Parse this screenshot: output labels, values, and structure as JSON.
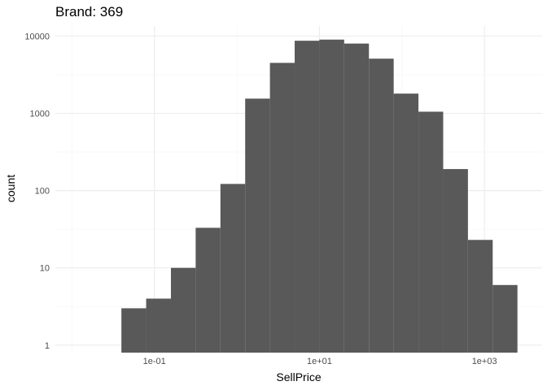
{
  "chart_data": {
    "type": "bar",
    "title": "Brand: 369",
    "xlabel": "SellPrice",
    "ylabel": "count",
    "x_scale": "log10",
    "y_scale": "log10",
    "xlim": [
      0.0063,
      5000
    ],
    "ylim": [
      0.8,
      13500
    ],
    "x_ticks": [
      0.1,
      10,
      1000
    ],
    "x_tick_labels": [
      "1e-01",
      "1e+01",
      "1e+03"
    ],
    "y_ticks": [
      1,
      10,
      100,
      1000,
      10000
    ],
    "y_tick_labels": [
      "1",
      "10",
      "100",
      "1000",
      "10000"
    ],
    "grid": true,
    "bar_color": "#595959",
    "bins": [
      {
        "x_start": 0.0398,
        "x_end": 0.0794,
        "count": 3
      },
      {
        "x_start": 0.0794,
        "x_end": 0.1585,
        "count": 4
      },
      {
        "x_start": 0.1585,
        "x_end": 0.3162,
        "count": 10
      },
      {
        "x_start": 0.3162,
        "x_end": 0.631,
        "count": 33
      },
      {
        "x_start": 0.631,
        "x_end": 1.259,
        "count": 122
      },
      {
        "x_start": 1.259,
        "x_end": 2.512,
        "count": 1550
      },
      {
        "x_start": 2.512,
        "x_end": 5.012,
        "count": 4500
      },
      {
        "x_start": 5.012,
        "x_end": 10.0,
        "count": 8700
      },
      {
        "x_start": 10.0,
        "x_end": 19.95,
        "count": 9000
      },
      {
        "x_start": 19.95,
        "x_end": 39.81,
        "count": 8000
      },
      {
        "x_start": 39.81,
        "x_end": 79.43,
        "count": 5100
      },
      {
        "x_start": 79.43,
        "x_end": 158.5,
        "count": 1800
      },
      {
        "x_start": 158.5,
        "x_end": 316.2,
        "count": 1050
      },
      {
        "x_start": 316.2,
        "x_end": 631.0,
        "count": 190
      },
      {
        "x_start": 631.0,
        "x_end": 1259,
        "count": 23
      },
      {
        "x_start": 1259,
        "x_end": 2512,
        "count": 6
      }
    ]
  }
}
